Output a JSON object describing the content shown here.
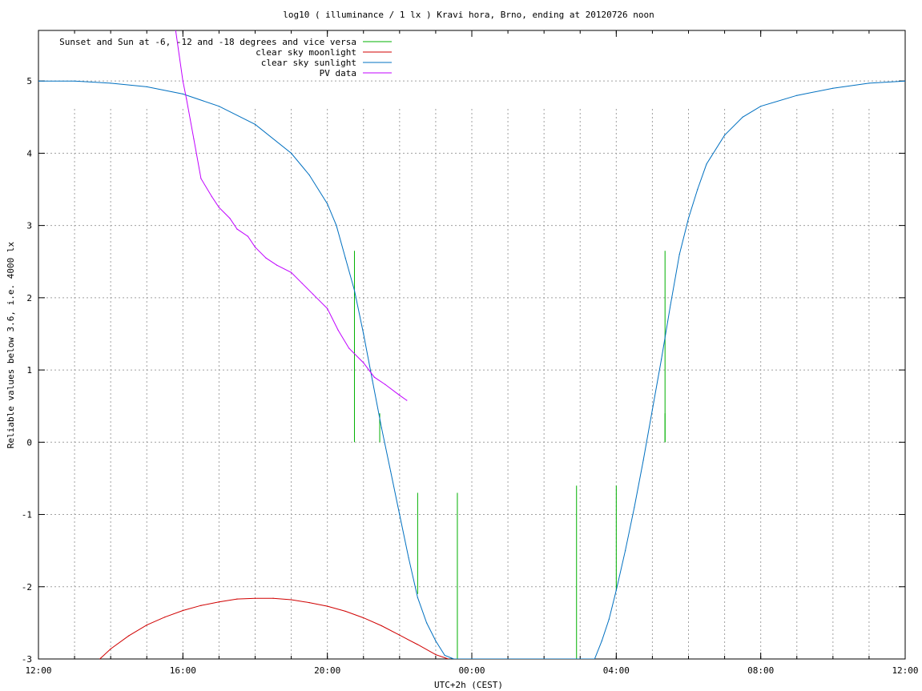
{
  "chart_data": {
    "type": "line",
    "title": "log10 ( illuminance / 1 lx ) Kravi hora, Brno, ending at 20120726 noon",
    "xlabel": "UTC+2h (CEST)",
    "ylabel": "Reliable values below 3.6, i.e. 4000 lx",
    "xlim": [
      12,
      36
    ],
    "ylim": [
      -3,
      5.7
    ],
    "x_unit": "hours (12:00 day 1 to 12:00 next day)",
    "x_ticks": [
      {
        "v": 12,
        "label": "12:00"
      },
      {
        "v": 16,
        "label": "16:00"
      },
      {
        "v": 20,
        "label": "20:00"
      },
      {
        "v": 24,
        "label": "00:00"
      },
      {
        "v": 28,
        "label": "04:00"
      },
      {
        "v": 32,
        "label": "08:00"
      },
      {
        "v": 36,
        "label": "12:00"
      }
    ],
    "y_ticks": [
      {
        "v": 5,
        "label": "5"
      },
      {
        "v": 4,
        "label": "4"
      },
      {
        "v": 3,
        "label": "3"
      },
      {
        "v": 2,
        "label": "2"
      },
      {
        "v": 1,
        "label": "1"
      },
      {
        "v": 0,
        "label": "0"
      },
      {
        "v": -1,
        "label": "-1"
      },
      {
        "v": -2,
        "label": "-2"
      },
      {
        "v": -3,
        "label": "-3"
      }
    ],
    "grid": true,
    "legend_position": "top-left",
    "series": [
      {
        "name": "Sunset and Sun at -6, -12 and -18 degrees and vice versa",
        "color": "#00b000",
        "kind": "impulses",
        "impulses": [
          {
            "x": 20.75,
            "y0": 0,
            "y1": 2.65
          },
          {
            "x": 21.45,
            "y0": 0,
            "y1": 0.4
          },
          {
            "x": 22.5,
            "y0": -0.7,
            "y1": -2.1
          },
          {
            "x": 23.6,
            "y0": -0.7,
            "y1": -3
          },
          {
            "x": 26.9,
            "y0": -0.6,
            "y1": -3
          },
          {
            "x": 28.0,
            "y0": -0.6,
            "y1": -2.05
          },
          {
            "x": 29.35,
            "y0": 0,
            "y1": 0.4
          },
          {
            "x": 29.35,
            "y0": 0,
            "y1": 2.65
          }
        ]
      },
      {
        "name": "clear sky moonlight",
        "color": "#d00000",
        "x": [
          13.7,
          14.0,
          14.5,
          15.0,
          15.5,
          16.0,
          16.5,
          17.0,
          17.5,
          18.0,
          18.5,
          19.0,
          19.5,
          20.0,
          20.5,
          21.0,
          21.5,
          22.0,
          22.5,
          23.0,
          23.35
        ],
        "values": [
          -3.0,
          -2.86,
          -2.68,
          -2.53,
          -2.42,
          -2.33,
          -2.26,
          -2.21,
          -2.17,
          -2.16,
          -2.16,
          -2.18,
          -2.22,
          -2.27,
          -2.34,
          -2.43,
          -2.54,
          -2.67,
          -2.8,
          -2.94,
          -3.0
        ]
      },
      {
        "name": "clear sky sunlight",
        "color": "#0070c0",
        "x": [
          12.0,
          13.0,
          14.0,
          15.0,
          16.0,
          17.0,
          18.0,
          19.0,
          19.5,
          20.0,
          20.25,
          20.5,
          20.75,
          21.0,
          21.25,
          21.5,
          21.75,
          22.0,
          22.25,
          22.5,
          22.75,
          23.0,
          23.25,
          23.5,
          27.4,
          27.6,
          27.8,
          28.0,
          28.25,
          28.5,
          28.75,
          29.0,
          29.25,
          29.5,
          29.75,
          30.0,
          30.25,
          30.5,
          31.0,
          31.5,
          32.0,
          33.0,
          34.0,
          35.0,
          36.0
        ],
        "values": [
          5.0,
          5.0,
          4.97,
          4.92,
          4.82,
          4.65,
          4.4,
          4.0,
          3.7,
          3.3,
          3.0,
          2.55,
          2.1,
          1.5,
          0.85,
          0.2,
          -0.4,
          -1.0,
          -1.6,
          -2.15,
          -2.5,
          -2.75,
          -2.95,
          -3.0,
          -3.0,
          -2.75,
          -2.45,
          -2.05,
          -1.5,
          -0.9,
          -0.25,
          0.45,
          1.15,
          1.9,
          2.6,
          3.1,
          3.5,
          3.85,
          4.25,
          4.5,
          4.65,
          4.8,
          4.9,
          4.97,
          5.0
        ]
      },
      {
        "name": "PV data",
        "color": "#c000ff",
        "x": [
          15.8,
          16.0,
          16.1,
          16.3,
          16.5,
          16.8,
          17.0,
          17.3,
          17.5,
          17.8,
          18.0,
          18.3,
          18.6,
          19.0,
          19.3,
          19.6,
          20.0,
          20.3,
          20.6,
          21.0,
          21.3,
          21.6,
          22.0,
          22.2
        ],
        "values": [
          5.7,
          5.0,
          4.75,
          4.2,
          3.65,
          3.4,
          3.25,
          3.1,
          2.95,
          2.85,
          2.7,
          2.55,
          2.45,
          2.35,
          2.2,
          2.05,
          1.85,
          1.55,
          1.3,
          1.1,
          0.9,
          0.8,
          0.65,
          0.58
        ]
      }
    ]
  }
}
